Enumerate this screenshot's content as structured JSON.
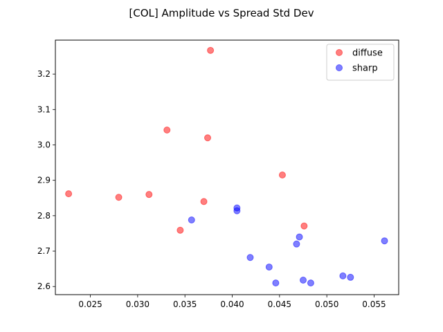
{
  "chart_data": {
    "type": "scatter",
    "title": "[COL] Amplitude vs Spread Std Dev",
    "xlabel": "",
    "ylabel": "",
    "xlim": [
      0.0213,
      0.0576
    ],
    "ylim": [
      2.577,
      3.296
    ],
    "xticks": [
      0.025,
      0.03,
      0.035,
      0.04,
      0.045,
      0.05,
      0.055
    ],
    "xtick_labels": [
      "0.025",
      "0.030",
      "0.035",
      "0.040",
      "0.045",
      "0.050",
      "0.055"
    ],
    "yticks": [
      2.6,
      2.7,
      2.8,
      2.9,
      3.0,
      3.1,
      3.2
    ],
    "ytick_labels": [
      "2.6",
      "2.7",
      "2.8",
      "2.9",
      "3.0",
      "3.1",
      "3.2"
    ],
    "grid": false,
    "legend_position": "top-right",
    "series": [
      {
        "name": "diffuse",
        "color": "#ff0000",
        "points": [
          [
            0.0227,
            2.862
          ],
          [
            0.028,
            2.852
          ],
          [
            0.0312,
            2.86
          ],
          [
            0.0331,
            3.042
          ],
          [
            0.0345,
            2.759
          ],
          [
            0.037,
            2.84
          ],
          [
            0.0374,
            3.02
          ],
          [
            0.0377,
            3.267
          ],
          [
            0.0453,
            2.915
          ],
          [
            0.0476,
            2.771
          ]
        ]
      },
      {
        "name": "sharp",
        "color": "#0000ff",
        "points": [
          [
            0.0357,
            2.788
          ],
          [
            0.0405,
            2.822
          ],
          [
            0.0405,
            2.814
          ],
          [
            0.0419,
            2.682
          ],
          [
            0.0439,
            2.655
          ],
          [
            0.0446,
            2.61
          ],
          [
            0.0468,
            2.72
          ],
          [
            0.0471,
            2.74
          ],
          [
            0.0475,
            2.618
          ],
          [
            0.0483,
            2.61
          ],
          [
            0.0517,
            2.63
          ],
          [
            0.0525,
            2.626
          ],
          [
            0.0561,
            2.729
          ]
        ]
      }
    ]
  }
}
